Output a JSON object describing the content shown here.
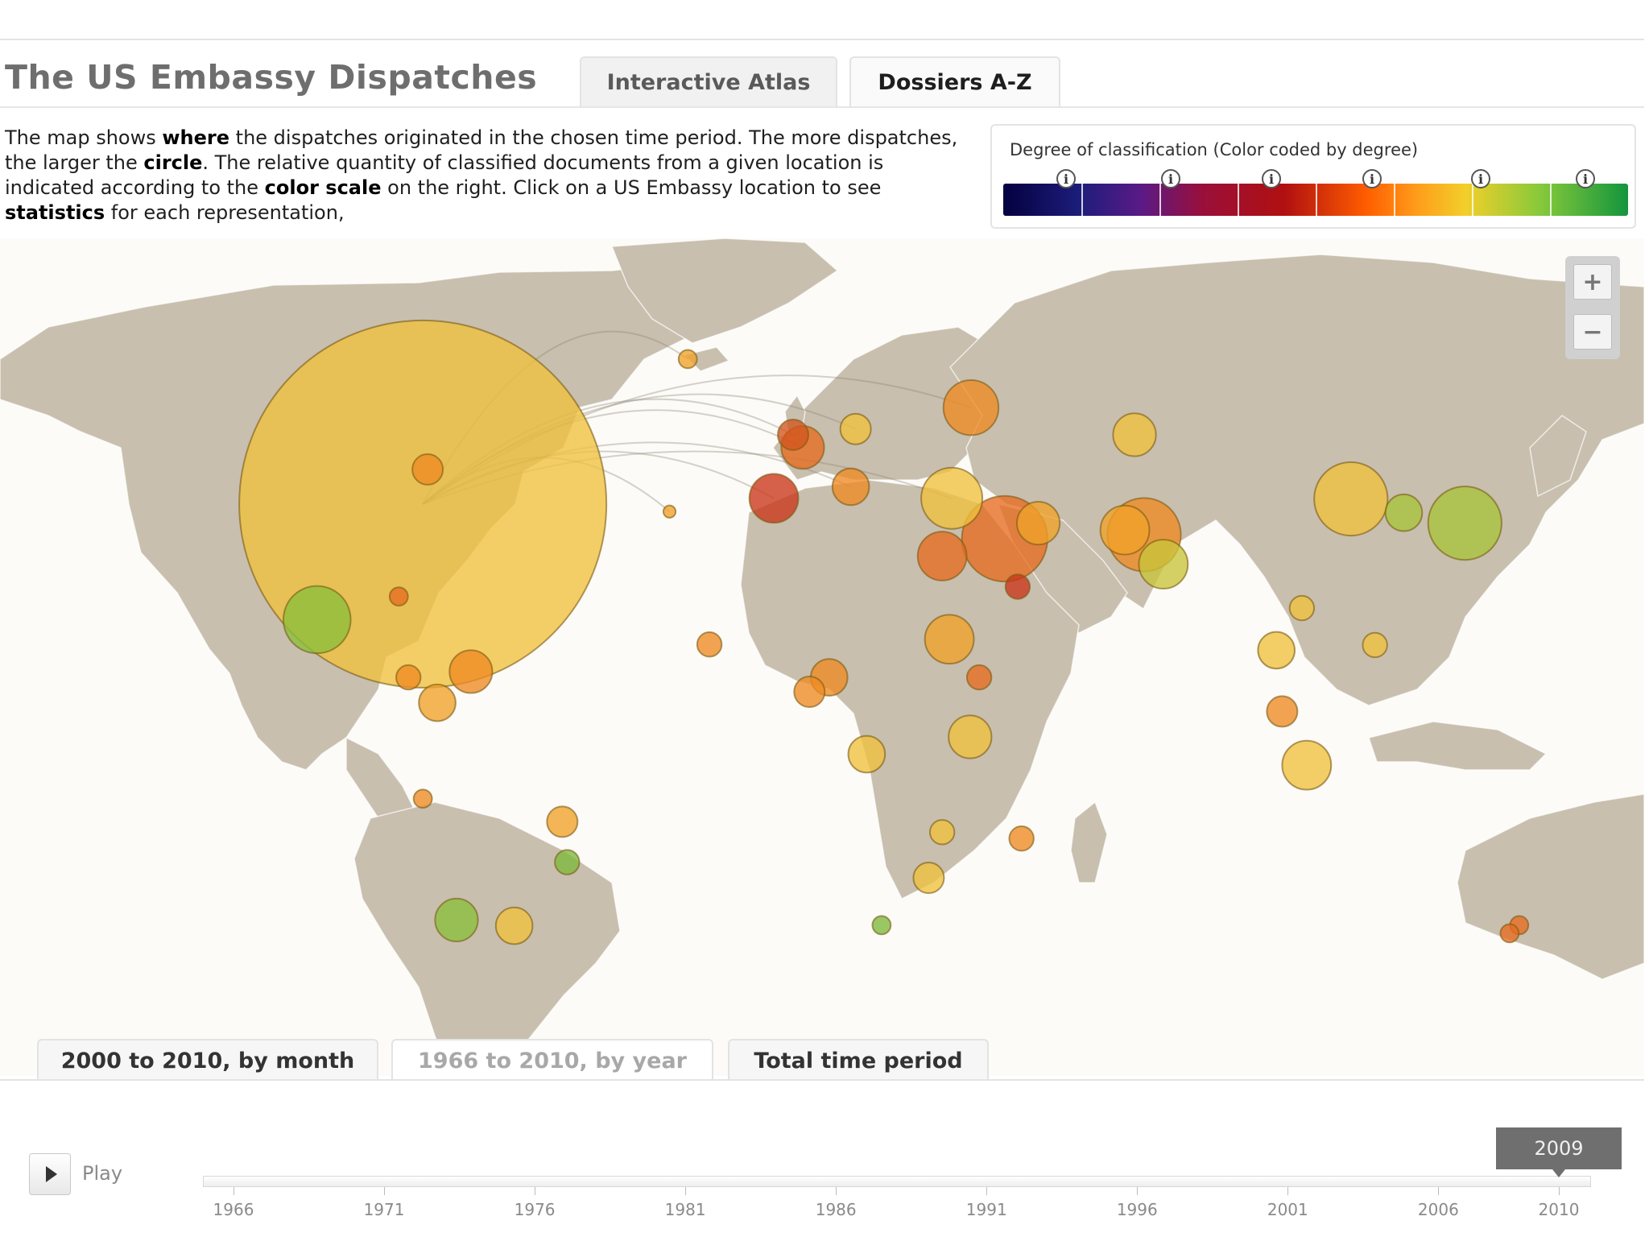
{
  "app": {
    "title": "The US Embassy Dispatches",
    "tabs": [
      {
        "label": "Interactive Atlas"
      },
      {
        "label": "Dossiers A-Z"
      }
    ]
  },
  "intro": {
    "parts": [
      {
        "text": "The map shows ",
        "bold": false
      },
      {
        "text": "where",
        "bold": true
      },
      {
        "text": " the dispatches originated in the chosen time period. The more dispatches, the larger the ",
        "bold": false
      },
      {
        "text": "circle",
        "bold": true
      },
      {
        "text": ". The relative quantity of classified documents from a given location is indicated according to the ",
        "bold": false
      },
      {
        "text": "color scale",
        "bold": true
      },
      {
        "text": " on the right. Click on a US Embassy location to see ",
        "bold": false
      },
      {
        "text": "statistics",
        "bold": true
      },
      {
        "text": " for each representation,",
        "bold": false
      }
    ]
  },
  "legend": {
    "title": "Degree of classification (Color coded by degree)",
    "info_glyph": "i",
    "info_count": 6,
    "segments": 8
  },
  "zoom": {
    "in": "+",
    "out": "−"
  },
  "colors": {
    "land": "#c8bfae",
    "ocean": "#fbfaf6",
    "highlight_yellow": "#f3c23b",
    "orange": "#ee8a22",
    "red": "#c9361a",
    "green": "#7cb83b"
  },
  "map": {
    "dispatch_locations": [
      {
        "name": "Washington",
        "lon": -77,
        "lat": 39,
        "size": 60,
        "color": "#f0c13e"
      },
      {
        "name": "Mexico City",
        "lon": -99,
        "lat": 19,
        "size": 11,
        "color": "#8bbf3a"
      },
      {
        "name": "Canada",
        "lon": -76,
        "lat": 45,
        "size": 5,
        "color": "#ee8a22"
      },
      {
        "name": "Havana",
        "lon": -82,
        "lat": 23,
        "size": 3,
        "color": "#e76b20"
      },
      {
        "name": "Panama",
        "lon": -80,
        "lat": 9,
        "size": 4,
        "color": "#ee8a22"
      },
      {
        "name": "Caracas",
        "lon": -67,
        "lat": 10,
        "size": 7,
        "color": "#ee8a22"
      },
      {
        "name": "Bogota",
        "lon": -74,
        "lat": 4.6,
        "size": 6,
        "color": "#f0a228"
      },
      {
        "name": "Lima",
        "lon": -77,
        "lat": -12,
        "size": 3,
        "color": "#ee8a22"
      },
      {
        "name": "Brasilia",
        "lon": -48,
        "lat": -16,
        "size": 5,
        "color": "#f0a228"
      },
      {
        "name": "Sao Paulo",
        "lon": -47,
        "lat": -23,
        "size": 4,
        "color": "#7cb83b"
      },
      {
        "name": "Buenos Aires",
        "lon": -58,
        "lat": -34,
        "size": 6,
        "color": "#f0c13e"
      },
      {
        "name": "Santiago",
        "lon": -70,
        "lat": -33,
        "size": 7,
        "color": "#8bbf3a"
      },
      {
        "name": "London",
        "lon": 0,
        "lat": 51,
        "size": 5,
        "color": "#d2551e"
      },
      {
        "name": "Madrid",
        "lon": -4,
        "lat": 40,
        "size": 8,
        "color": "#c9361a"
      },
      {
        "name": "Paris",
        "lon": 2,
        "lat": 48.8,
        "size": 7,
        "color": "#e76b20"
      },
      {
        "name": "Berlin",
        "lon": 13,
        "lat": 52,
        "size": 5,
        "color": "#f0c13e"
      },
      {
        "name": "Rome",
        "lon": 12,
        "lat": 42,
        "size": 6,
        "color": "#ee8a22"
      },
      {
        "name": "Moscow",
        "lon": 37,
        "lat": 55.7,
        "size": 9,
        "color": "#ee8a22"
      },
      {
        "name": "Ankara",
        "lon": 33,
        "lat": 40,
        "size": 10,
        "color": "#f0c13e"
      },
      {
        "name": "Baghdad",
        "lon": 44,
        "lat": 33,
        "size": 14,
        "color": "#e76b20"
      },
      {
        "name": "Tehran",
        "lon": 51,
        "lat": 35.7,
        "size": 7,
        "color": "#f0a228"
      },
      {
        "name": "Islamabad",
        "lon": 73,
        "lat": 33.7,
        "size": 12,
        "color": "#ee8a22"
      },
      {
        "name": "Kabul",
        "lon": 69,
        "lat": 34.5,
        "size": 8,
        "color": "#f0a228"
      },
      {
        "name": "Riyadh",
        "lon": 46.7,
        "lat": 24.7,
        "size": 4,
        "color": "#c9361a"
      },
      {
        "name": "Cairo",
        "lon": 31,
        "lat": 30,
        "size": 8,
        "color": "#e76b20"
      },
      {
        "name": "New Delhi",
        "lon": 77,
        "lat": 28.6,
        "size": 8,
        "color": "#c9c43a"
      },
      {
        "name": "Beijing",
        "lon": 116,
        "lat": 39.9,
        "size": 12,
        "color": "#f0c13e"
      },
      {
        "name": "Tokyo",
        "lon": 139.7,
        "lat": 35.7,
        "size": 12,
        "color": "#a6c43a"
      },
      {
        "name": "Seoul",
        "lon": 127,
        "lat": 37.5,
        "size": 6,
        "color": "#a6c43a"
      },
      {
        "name": "Astana",
        "lon": 71,
        "lat": 51,
        "size": 7,
        "color": "#f0c13e"
      },
      {
        "name": "Bangkok",
        "lon": 100.5,
        "lat": 13.7,
        "size": 6,
        "color": "#f0c13e"
      },
      {
        "name": "Hanoi",
        "lon": 105.8,
        "lat": 21,
        "size": 4,
        "color": "#f0c13e"
      },
      {
        "name": "Manila",
        "lon": 121,
        "lat": 14.6,
        "size": 4,
        "color": "#f0c13e"
      },
      {
        "name": "Jakarta",
        "lon": 106.8,
        "lat": -6.2,
        "size": 8,
        "color": "#f0c13e"
      },
      {
        "name": "Kuala Lumpur",
        "lon": 101.7,
        "lat": 3.1,
        "size": 5,
        "color": "#ee8a22"
      },
      {
        "name": "Lagos",
        "lon": 3.4,
        "lat": 6.5,
        "size": 5,
        "color": "#ee8a22"
      },
      {
        "name": "Abuja",
        "lon": 7.5,
        "lat": 9,
        "size": 6,
        "color": "#ee8a22"
      },
      {
        "name": "Dakar",
        "lon": -17.4,
        "lat": 14.7,
        "size": 4,
        "color": "#ee8a22"
      },
      {
        "name": "Khartoum",
        "lon": 32.5,
        "lat": 15.6,
        "size": 8,
        "color": "#f0a228"
      },
      {
        "name": "Addis Ababa",
        "lon": 38.7,
        "lat": 9,
        "size": 4,
        "color": "#e76b20"
      },
      {
        "name": "Nairobi",
        "lon": 36.8,
        "lat": -1.3,
        "size": 7,
        "color": "#f0c13e"
      },
      {
        "name": "Kinshasa",
        "lon": 15.3,
        "lat": -4.3,
        "size": 6,
        "color": "#f0c13e"
      },
      {
        "name": "Harare",
        "lon": 31,
        "lat": -17.8,
        "size": 4,
        "color": "#f0c13e"
      },
      {
        "name": "Pretoria",
        "lon": 28.2,
        "lat": -25.7,
        "size": 5,
        "color": "#f0c13e"
      },
      {
        "name": "Cape Town",
        "lon": 18.4,
        "lat": -33.9,
        "size": 3,
        "color": "#7cb83b"
      },
      {
        "name": "Antananarivo",
        "lon": 47.5,
        "lat": -18.9,
        "size": 4,
        "color": "#ee8a22"
      },
      {
        "name": "Reykjavik",
        "lon": -21.9,
        "lat": 64.1,
        "size": 3,
        "color": "#f0a228"
      },
      {
        "name": "Azores",
        "lon": -25.7,
        "lat": 37.7,
        "size": 2,
        "color": "#f0a228"
      },
      {
        "name": "Sydney",
        "lon": 151,
        "lat": -33.9,
        "size": 3,
        "color": "#e76b20"
      },
      {
        "name": "Canberra",
        "lon": 149,
        "lat": -35.3,
        "size": 3,
        "color": "#e76b20"
      }
    ]
  },
  "period_tabs": [
    {
      "label": "2000 to 2010, by month"
    },
    {
      "label": "1966 to 2010, by year"
    },
    {
      "label": "Total time period"
    }
  ],
  "timeline": {
    "play_label": "Play",
    "current_year": "2009",
    "ticks": [
      "1966",
      "1971",
      "1976",
      "1981",
      "1986",
      "1991",
      "1996",
      "2001",
      "2006",
      "2010"
    ]
  }
}
